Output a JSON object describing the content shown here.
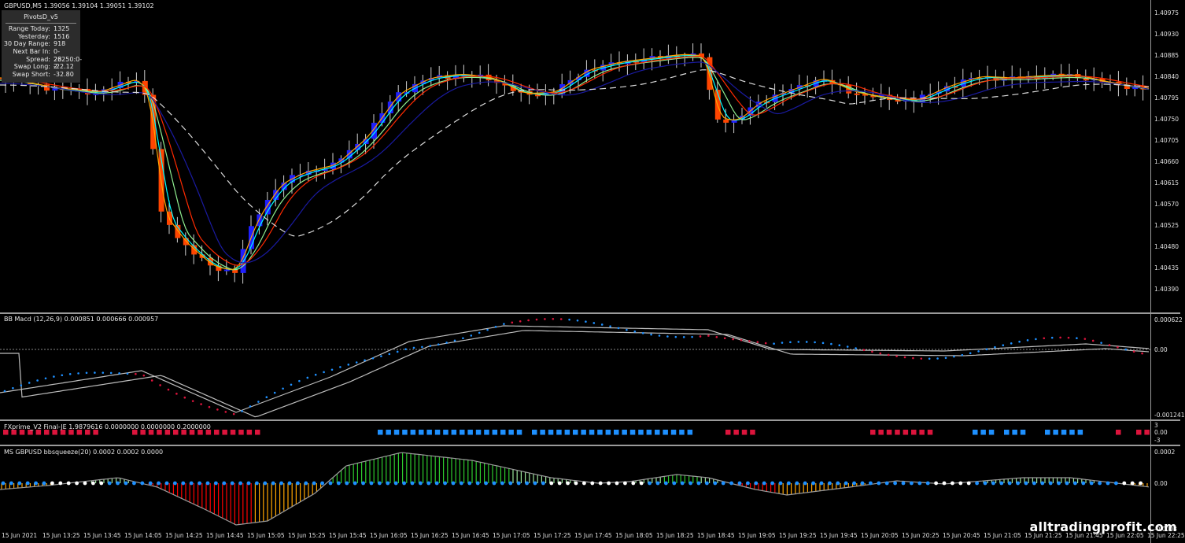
{
  "main_chart": {
    "title": "GBPUSD,M5  1.39056 1.39104 1.39051 1.39102",
    "price_ticks": [
      "1.40975",
      "1.40930",
      "1.40885",
      "1.40840",
      "1.40795",
      "1.40750",
      "1.40705",
      "1.40660",
      "1.40615",
      "1.40570",
      "1.40525",
      "1.40480",
      "1.40435",
      "1.40390"
    ],
    "bull_color": "#1f1fff",
    "bear_color": "#ff4500"
  },
  "pivots_panel": {
    "title": "PivotsD_v5",
    "rows": [
      {
        "key": "Range  Today:",
        "value": "1325"
      },
      {
        "key": "Yesterday:",
        "value": "1516"
      },
      {
        "key": "30 Day Range:",
        "value": "918"
      },
      {
        "key": "Next Bar In:",
        "value": "0-26250:0-2"
      },
      {
        "key": "Spread:",
        "value": "23"
      },
      {
        "key": "Swap  Long:",
        "value": "-22.12"
      },
      {
        "key": "Swap  Short:",
        "value": "-32.80"
      }
    ]
  },
  "macd_panel": {
    "label": "BB Macd (12,26,9) 0.000851 0.000666 0.000957",
    "ticks": [
      "0.000622",
      "0.00",
      "-0.001241"
    ]
  },
  "fxprime_panel": {
    "label": "FXprime_V2 Final-JE 1.9879616 0.0000000 0.0000000 0.2000000",
    "ticks": [
      "3",
      "0.00",
      "-3"
    ]
  },
  "squeeze_panel": {
    "label": "MS GBPUSD bbsqueeze(20) 0.0002 0.0002 0.0000",
    "ticks": [
      "0.0002",
      "0.00",
      "-0.0003"
    ]
  },
  "time_axis": {
    "labels": [
      "15 Jun 2021",
      "15 Jun 13:25",
      "15 Jun 13:45",
      "15 Jun 14:05",
      "15 Jun 14:25",
      "15 Jun 14:45",
      "15 Jun 15:05",
      "15 Jun 15:25",
      "15 Jun 15:45",
      "15 Jun 16:05",
      "15 Jun 16:25",
      "15 Jun 16:45",
      "15 Jun 17:05",
      "15 Jun 17:25",
      "15 Jun 17:45",
      "15 Jun 18:05",
      "15 Jun 18:25",
      "15 Jun 18:45",
      "15 Jun 19:05",
      "15 Jun 19:25",
      "15 Jun 19:45",
      "15 Jun 20:05",
      "15 Jun 20:25",
      "15 Jun 20:45",
      "15 Jun 21:05",
      "15 Jun 21:25",
      "15 Jun 21:45",
      "15 Jun 22:05",
      "15 Jun 22:25"
    ]
  },
  "watermark": "alltradingprofit.com",
  "colors": {
    "ema_cyan": "#00ffff",
    "ema_green": "#90ee90",
    "ema_orange": "#ffa500",
    "ema_red": "#ff2a00",
    "ema_navy": "#1a1aa0",
    "dashed_ma": "#dcdcdc",
    "fx_red": "#dc143c",
    "fx_blue": "#1e90ff"
  }
}
